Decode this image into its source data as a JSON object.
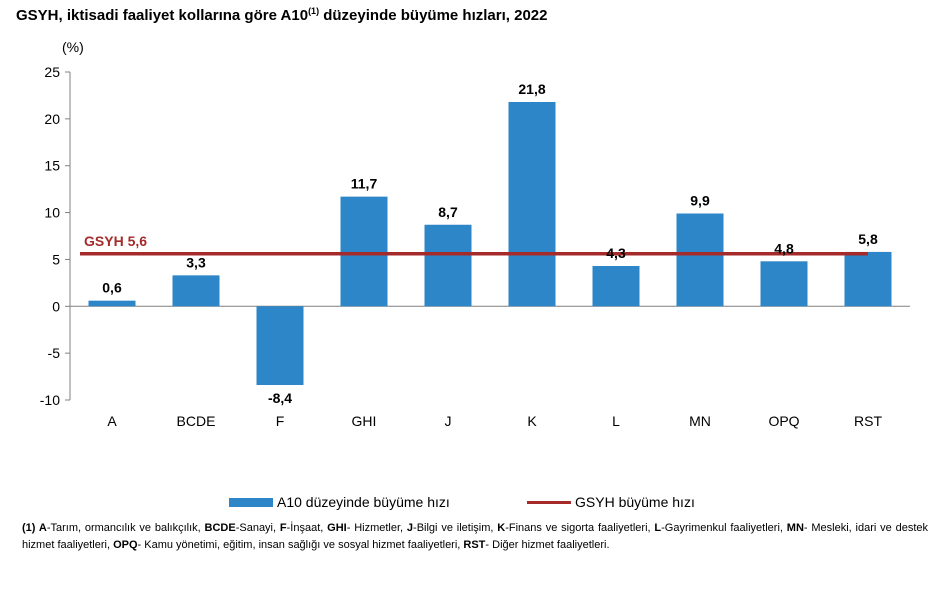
{
  "title_main": "GSYH, iktisadi faaliyet kollarına göre A10",
  "title_sup": "(1)",
  "title_end": " düzeyinde büyüme hızları, 2022",
  "colors": {
    "bar": "#2d86c8",
    "line": "#a52a2a",
    "axis": "#808080"
  },
  "chart_data": {
    "type": "bar",
    "ylabel": "(%)",
    "ylim": [
      -10,
      25
    ],
    "yticks": [
      -10,
      -5,
      0,
      5,
      10,
      15,
      20,
      25
    ],
    "categories": [
      "A",
      "BCDE",
      "F",
      "GHI",
      "J",
      "K",
      "L",
      "MN",
      "OPQ",
      "RST"
    ],
    "series": [
      {
        "name": "A10 düzeyinde büyüme hızı",
        "values": [
          0.6,
          3.3,
          -8.4,
          11.7,
          8.7,
          21.8,
          4.3,
          9.9,
          4.8,
          5.8
        ],
        "labels": [
          "0,6",
          "3,3",
          "-8,4",
          "11,7",
          "8,7",
          "21,8",
          "4,3",
          "9,9",
          "4,8",
          "5,8"
        ]
      },
      {
        "name": "GSYH büyüme hızı",
        "type": "line",
        "value": 5.6,
        "label": "GSYH 5,6"
      }
    ],
    "legend_position": "bottom"
  },
  "legend": {
    "bar_label": "A10 düzeyinde büyüme hızı",
    "line_label": "GSYH büyüme hızı"
  },
  "footnote": [
    {
      "b": "(1) A",
      "t": "-Tarım, ormancılık ve balıkçılık, "
    },
    {
      "b": "BCDE",
      "t": "-Sanayi, "
    },
    {
      "b": "F",
      "t": "-İnşaat, "
    },
    {
      "b": "GHI",
      "t": "- Hizmetler, "
    },
    {
      "b": "J",
      "t": "-Bilgi ve iletişim, "
    },
    {
      "b": "K",
      "t": "-Finans ve sigorta faaliyetleri, "
    },
    {
      "b": "L",
      "t": "-Gayrimenkul faaliyetleri, "
    },
    {
      "b": "MN",
      "t": "- Mesleki, idari ve destek hizmet faaliyetleri, "
    },
    {
      "b": "OPQ",
      "t": "- Kamu yönetimi, eğitim, insan sağlığı ve sosyal hizmet faaliyetleri, "
    },
    {
      "b": "RST",
      "t": "- Diğer hizmet faaliyetleri."
    }
  ]
}
